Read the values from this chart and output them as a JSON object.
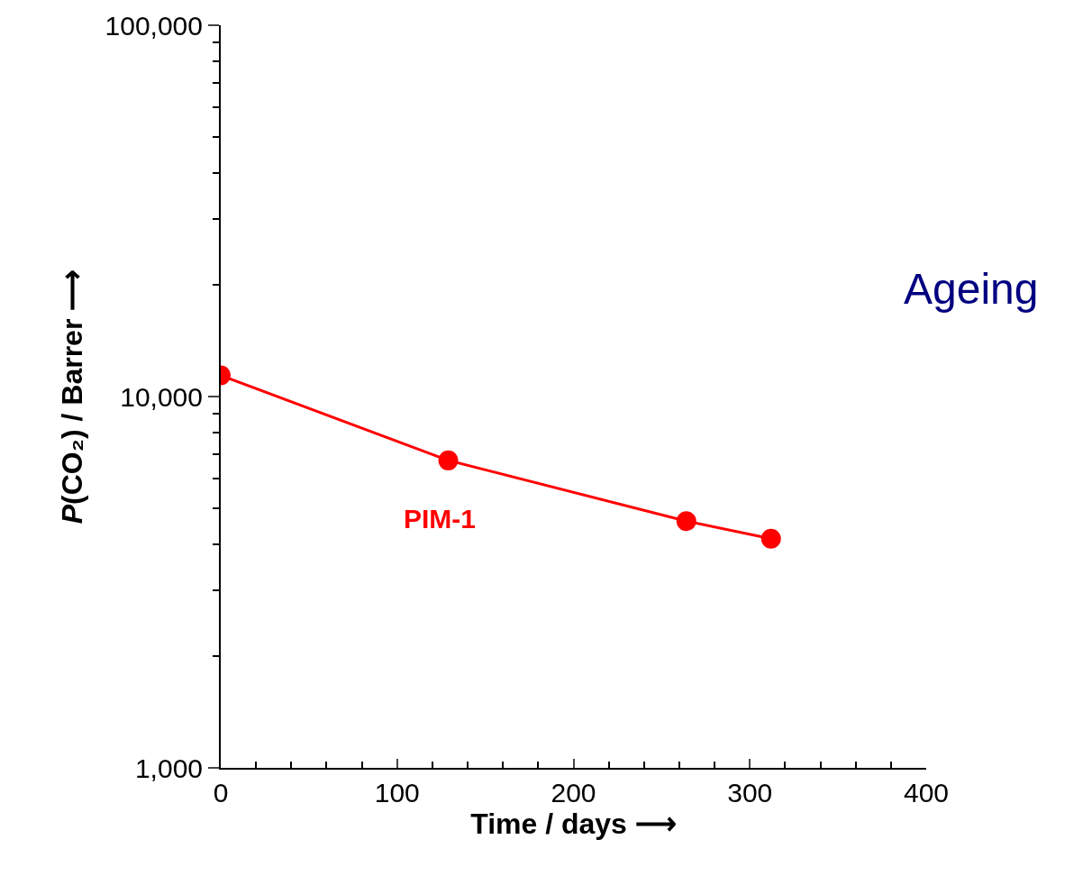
{
  "chart_data": {
    "type": "line",
    "xlabel": "Time / days ⟶",
    "ylabel": "P(CO₂) / Barrer ⟶",
    "annotations": [
      "Ageing"
    ],
    "x": [
      0,
      129,
      264,
      312
    ],
    "series": [
      {
        "name": "PIM-1",
        "color": "#ff0000",
        "values": [
          11400,
          6730,
          4620,
          4140
        ]
      }
    ],
    "log": "y",
    "xlim": [
      0,
      400
    ],
    "xticks": [
      0,
      100,
      200,
      300,
      400
    ],
    "ylim": [
      1000,
      100000
    ],
    "yticks": [
      {
        "value": 1000,
        "label": "1,000"
      },
      {
        "value": 10000,
        "label": "10,000"
      },
      {
        "value": 100000,
        "label": "100,000"
      }
    ],
    "marker": "circle",
    "line_style": "solid",
    "legend": false
  }
}
